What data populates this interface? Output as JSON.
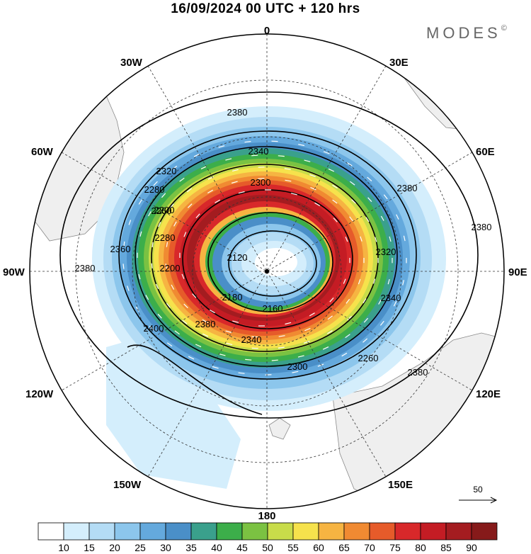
{
  "header": {
    "title": "16/09/2024  00 UTC  + 120 hrs",
    "brand": "MODES",
    "brand_mark": "©"
  },
  "map": {
    "projection": "south-polar-stereographic",
    "longitude_labels": {
      "top": "0",
      "bottom": "180",
      "left": "90W",
      "right": "90E",
      "upper_left": "30W",
      "upper_right": "30E",
      "mid_left": "60W",
      "mid_right": "60E",
      "lower_left": "120W",
      "lower_right": "120E",
      "bottom_left": "150W",
      "bottom_right": "150E"
    },
    "contour_labels": [
      "2380",
      "2340",
      "2320",
      "2300",
      "2280",
      "2260",
      "2200",
      "2120",
      "2160",
      "2180",
      "2200",
      "2280",
      "2360",
      "2380",
      "2400",
      "2380",
      "2340",
      "2300",
      "2260",
      "2380",
      "2380",
      "2320",
      "2340",
      "2380"
    ],
    "reference_vector": {
      "label": "50"
    }
  },
  "colorbar": {
    "labels": [
      "10",
      "15",
      "20",
      "25",
      "30",
      "35",
      "40",
      "45",
      "50",
      "55",
      "60",
      "65",
      "70",
      "75",
      "80",
      "85",
      "90"
    ],
    "colors": [
      "#ffffff",
      "#d4eefc",
      "#b4dcf5",
      "#8cc6ec",
      "#64a9dd",
      "#4a8fc8",
      "#3aa08c",
      "#3cae4a",
      "#7bc242",
      "#c8dc4a",
      "#f6e24c",
      "#f6b442",
      "#f08a32",
      "#e65b2a",
      "#d8282a",
      "#c41c24",
      "#a41c20",
      "#861a1a"
    ]
  }
}
